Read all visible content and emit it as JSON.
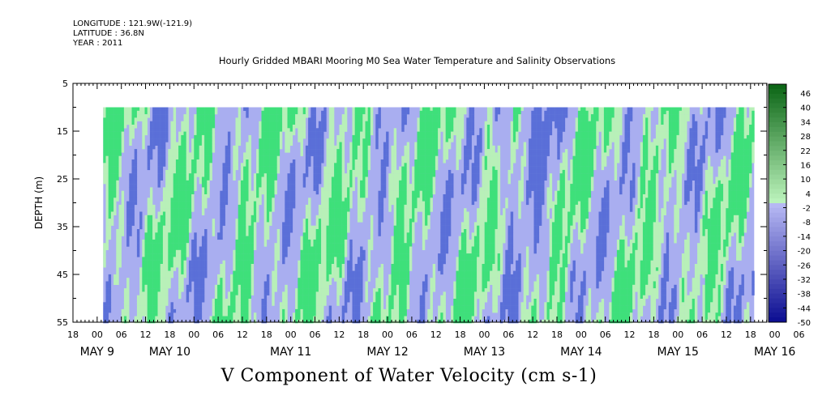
{
  "meta": {
    "longitude": "LONGITUDE : 121.9W(-121.9)",
    "latitude": "LATITUDE : 36.8N",
    "year": "YEAR : 2011"
  },
  "chart_data": {
    "type": "heatmap",
    "title": "Hourly Gridded MBARI Mooring M0 Sea Water Temperature and Salinity Observations",
    "xlabel": "V Component of Water Velocity (cm s-1)",
    "ylabel": "DEPTH (m)",
    "ylim": [
      5,
      55
    ],
    "y_inverted": true,
    "y_ticks": [
      "5",
      "15",
      "25",
      "35",
      "45",
      "55"
    ],
    "x_hour_labels": [
      "18",
      "00",
      "06",
      "12",
      "18",
      "00",
      "06",
      "12",
      "18",
      "00",
      "06",
      "12",
      "18",
      "00",
      "06",
      "12",
      "18",
      "00",
      "06",
      "12",
      "18",
      "00",
      "06",
      "12",
      "18",
      "00",
      "06",
      "12",
      "18",
      "00",
      "06",
      "12",
      "18"
    ],
    "x_date_labels": [
      "MAY  9",
      "MAY 10",
      "MAY 11",
      "MAY 12",
      "MAY 13",
      "MAY 14",
      "MAY 15",
      "MAY 16"
    ],
    "x_date_hour_index": [
      1,
      4,
      9,
      13,
      17,
      21,
      25,
      29
    ],
    "data_depth_range": [
      10,
      55
    ],
    "colorbar": {
      "labels": [
        "46",
        "40",
        "34",
        "28",
        "22",
        "16",
        "10",
        "4",
        "-2",
        "-8",
        "-14",
        "-20",
        "-26",
        "-32",
        "-38",
        "-44",
        "-50"
      ],
      "range": [
        -50,
        50
      ]
    },
    "colors": {
      "strong_negative": "#0a1a6e",
      "negative": "#5a6fd8",
      "weak_negative": "#a9aef0",
      "weak_positive": "#b8f0b8",
      "positive": "#3ee07a",
      "strong_positive": "#0a7a2a"
    }
  }
}
